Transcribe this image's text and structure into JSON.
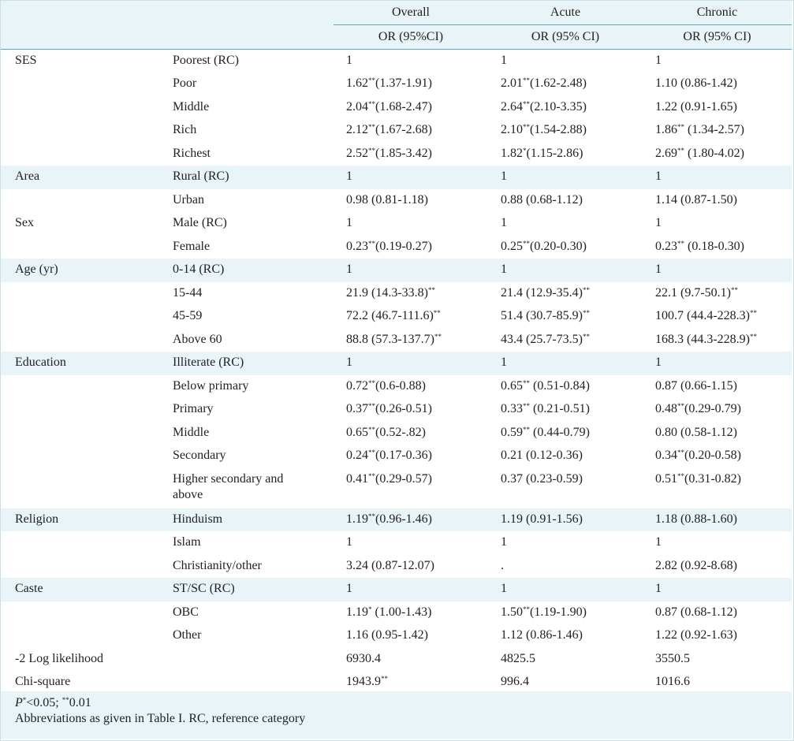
{
  "headers": {
    "groups": [
      "Overall",
      "Acute",
      "Chronic"
    ],
    "sub": [
      "OR (95%CI)",
      "OR (95% CI)",
      "OR (95% CI)"
    ]
  },
  "rows": [
    {
      "cat": "SES",
      "sub": "Poorest (RC)",
      "v": [
        [
          "1",
          ""
        ],
        [
          "1",
          ""
        ],
        [
          "1",
          ""
        ]
      ],
      "shade": false
    },
    {
      "cat": "",
      "sub": "Poor",
      "v": [
        [
          "1.62",
          "**",
          "(1.37-1.91)"
        ],
        [
          "2.01",
          "**",
          "(1.62-2.48)"
        ],
        [
          "1.10 (0.86-1.42)",
          "",
          ""
        ]
      ],
      "shade": false
    },
    {
      "cat": "",
      "sub": "Middle",
      "v": [
        [
          "2.04",
          "**",
          "(1.68-2.47)"
        ],
        [
          "2.64",
          "**",
          "(2.10-3.35)"
        ],
        [
          "1.22 (0.91-1.65)",
          "",
          ""
        ]
      ],
      "shade": false
    },
    {
      "cat": "",
      "sub": "Rich",
      "v": [
        [
          "2.12",
          "**",
          "(1.67-2.68)"
        ],
        [
          "2.10",
          "**",
          "(1.54-2.88)"
        ],
        [
          "1.86",
          "**",
          " (1.34-2.57)"
        ]
      ],
      "shade": false
    },
    {
      "cat": "",
      "sub": "Richest",
      "v": [
        [
          "2.52",
          "**",
          "(1.85-3.42)"
        ],
        [
          "1.82",
          "*",
          "(1.15-2.86)"
        ],
        [
          "2.69",
          "**",
          " (1.80-4.02)"
        ]
      ],
      "shade": false
    },
    {
      "cat": "Area",
      "sub": "Rural (RC)",
      "v": [
        [
          "1",
          "",
          ""
        ],
        [
          "1",
          "",
          ""
        ],
        [
          "1",
          "",
          ""
        ]
      ],
      "shade": true
    },
    {
      "cat": "",
      "sub": "Urban",
      "v": [
        [
          "0.98 (0.81-1.18)",
          "",
          ""
        ],
        [
          "0.88 (0.68-1.12)",
          "",
          ""
        ],
        [
          "1.14 (0.87-1.50)",
          "",
          ""
        ]
      ],
      "shade": false
    },
    {
      "cat": "Sex",
      "sub": "Male (RC)",
      "v": [
        [
          "1",
          "",
          ""
        ],
        [
          "1",
          "",
          ""
        ],
        [
          "1",
          "",
          ""
        ]
      ],
      "shade": false
    },
    {
      "cat": "",
      "sub": "Female",
      "v": [
        [
          "0.23",
          "**",
          "(0.19-0.27)"
        ],
        [
          "0.25",
          "**",
          "(0.20-0.30)"
        ],
        [
          "0.23",
          "**",
          " (0.18-0.30)"
        ]
      ],
      "shade": false
    },
    {
      "cat": "Age (yr)",
      "sub": "0-14 (RC)",
      "v": [
        [
          "1",
          "",
          ""
        ],
        [
          "1",
          "",
          ""
        ],
        [
          "1",
          "",
          ""
        ]
      ],
      "shade": true
    },
    {
      "cat": "",
      "sub": "15-44",
      "v": [
        [
          "21.9 (14.3-33.8)",
          "**",
          ""
        ],
        [
          "21.4 (12.9-35.4)",
          "**",
          ""
        ],
        [
          "22.1 (9.7-50.1)",
          "**",
          ""
        ]
      ],
      "shade": false
    },
    {
      "cat": "",
      "sub": "45-59",
      "v": [
        [
          "72.2 (46.7-111.6)",
          "**",
          ""
        ],
        [
          "51.4 (30.7-85.9)",
          "**",
          ""
        ],
        [
          "100.7 (44.4-228.3)",
          "**",
          ""
        ]
      ],
      "shade": false
    },
    {
      "cat": "",
      "sub": "Above 60",
      "v": [
        [
          "88.8 (57.3-137.7)",
          "**",
          ""
        ],
        [
          "43.4 (25.7-73.5)",
          "**",
          ""
        ],
        [
          "168.3 (44.3-228.9)",
          "**",
          ""
        ]
      ],
      "shade": false
    },
    {
      "cat": "Education",
      "sub": "Illiterate (RC)",
      "v": [
        [
          "1",
          "",
          ""
        ],
        [
          "1",
          "",
          ""
        ],
        [
          "1",
          "",
          ""
        ]
      ],
      "shade": true
    },
    {
      "cat": "",
      "sub": "Below primary",
      "v": [
        [
          "0.72",
          "**",
          "(0.6-0.88)"
        ],
        [
          "0.65",
          "**",
          " (0.51-0.84)"
        ],
        [
          "0.87 (0.66-1.15)",
          "",
          ""
        ]
      ],
      "shade": false
    },
    {
      "cat": "",
      "sub": "Primary",
      "v": [
        [
          "0.37",
          "**",
          "(0.26-0.51)"
        ],
        [
          "0.33",
          "**",
          " (0.21-0.51)"
        ],
        [
          "0.48",
          "**",
          "(0.29-0.79)"
        ]
      ],
      "shade": false
    },
    {
      "cat": "",
      "sub": "Middle",
      "v": [
        [
          "0.65",
          "**",
          "(0.52-.82)"
        ],
        [
          "0.59",
          "**",
          " (0.44-0.79)"
        ],
        [
          "0.80 (0.58-1.12)",
          "",
          ""
        ]
      ],
      "shade": false
    },
    {
      "cat": "",
      "sub": "Secondary",
      "v": [
        [
          "0.24",
          "**",
          "(0.17-0.36)"
        ],
        [
          "0.21 (0.12-0.36)",
          "",
          ""
        ],
        [
          "0.34",
          "**",
          "(0.20-0.58)"
        ]
      ],
      "shade": false
    },
    {
      "cat": "",
      "sub": "Higher secondary and above",
      "v": [
        [
          "0.41",
          "**",
          "(0.29-0.57)"
        ],
        [
          "0.37 (0.23-0.59)",
          "",
          ""
        ],
        [
          "0.51",
          "**",
          "(0.31-0.82)"
        ]
      ],
      "shade": false,
      "tall": true
    },
    {
      "cat": "Religion",
      "sub": "Hinduism",
      "v": [
        [
          "1.19",
          "**",
          "(0.96-1.46)"
        ],
        [
          "1.19 (0.91-1.56)",
          "",
          ""
        ],
        [
          "1.18 (0.88-1.60)",
          "",
          ""
        ]
      ],
      "shade": true
    },
    {
      "cat": "",
      "sub": "Islam",
      "v": [
        [
          "1",
          "",
          ""
        ],
        [
          "1",
          "",
          ""
        ],
        [
          "1",
          "",
          ""
        ]
      ],
      "shade": false
    },
    {
      "cat": "",
      "sub": "Christianity/other",
      "v": [
        [
          "3.24 (0.87-12.07)",
          "",
          ""
        ],
        [
          ".",
          "",
          ""
        ],
        [
          "2.82 (0.92-8.68)",
          "",
          ""
        ]
      ],
      "shade": false
    },
    {
      "cat": "Caste",
      "sub": "ST/SC (RC)",
      "v": [
        [
          "1",
          "",
          ""
        ],
        [
          "1",
          "",
          ""
        ],
        [
          "1",
          "",
          ""
        ]
      ],
      "shade": true
    },
    {
      "cat": "",
      "sub": "OBC",
      "v": [
        [
          "1.19",
          "*",
          " (1.00-1.43)"
        ],
        [
          "1.50",
          "**",
          "(1.19-1.90)"
        ],
        [
          "0.87 (0.68-1.12)",
          "",
          ""
        ]
      ],
      "shade": false
    },
    {
      "cat": "",
      "sub": "Other",
      "v": [
        [
          "1.16 (0.95-1.42)",
          "",
          ""
        ],
        [
          "1.12 (0.86-1.46)",
          "",
          ""
        ],
        [
          "1.22 (0.92-1.63)",
          "",
          ""
        ]
      ],
      "shade": false
    },
    {
      "cat": "-2 Log likelihood",
      "sub": "",
      "v": [
        [
          "6930.4",
          "",
          ""
        ],
        [
          "4825.5",
          "",
          ""
        ],
        [
          "3550.5",
          "",
          ""
        ]
      ],
      "shade": false
    },
    {
      "cat": "Chi-square",
      "sub": "",
      "v": [
        [
          "1943.9",
          "**",
          ""
        ],
        [
          "996.4",
          "",
          ""
        ],
        [
          "1016.6",
          "",
          ""
        ]
      ],
      "shade": false
    }
  ],
  "footnote": {
    "p_label": "P",
    "p_mark1": "*",
    "p_text1": "<0.05; ",
    "p_mark2": "**",
    "p_text2": "0.01",
    "line2": "Abbreviations as given in Table I. RC, reference category"
  }
}
